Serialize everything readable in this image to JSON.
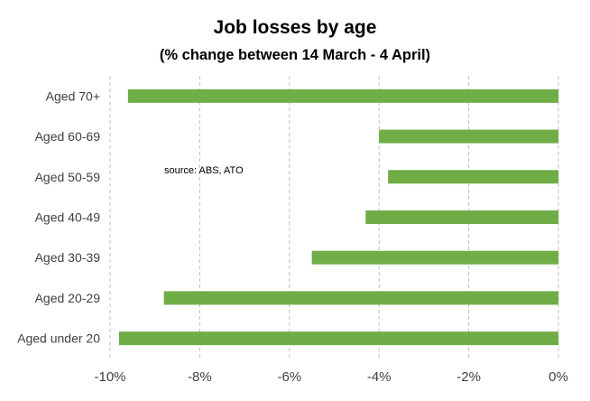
{
  "chart_data": {
    "type": "bar",
    "orientation": "horizontal",
    "title": "Job losses by age",
    "subtitle": "(%  change between 14 March - 4 April)",
    "annotation": "source:  ABS, ATO",
    "categories": [
      "Aged 70+",
      "Aged 60-69",
      "Aged 50-59",
      "Aged 40-49",
      "Aged 30-39",
      "Aged 20-29",
      "Aged under 20"
    ],
    "values": [
      -9.6,
      -4.0,
      -3.8,
      -4.3,
      -5.5,
      -8.8,
      -9.8
    ],
    "xlim": [
      -10,
      0
    ],
    "xticks": [
      -10,
      -8,
      -6,
      -4,
      -2,
      0
    ],
    "xtick_labels": [
      "-10%",
      "-8%",
      "-6%",
      "-4%",
      "-2%",
      "0%"
    ],
    "xlabel": "",
    "ylabel": "",
    "grid": "vertical-dashed",
    "bar_color": "#70ad47",
    "grid_color": "#bfbfbf"
  }
}
